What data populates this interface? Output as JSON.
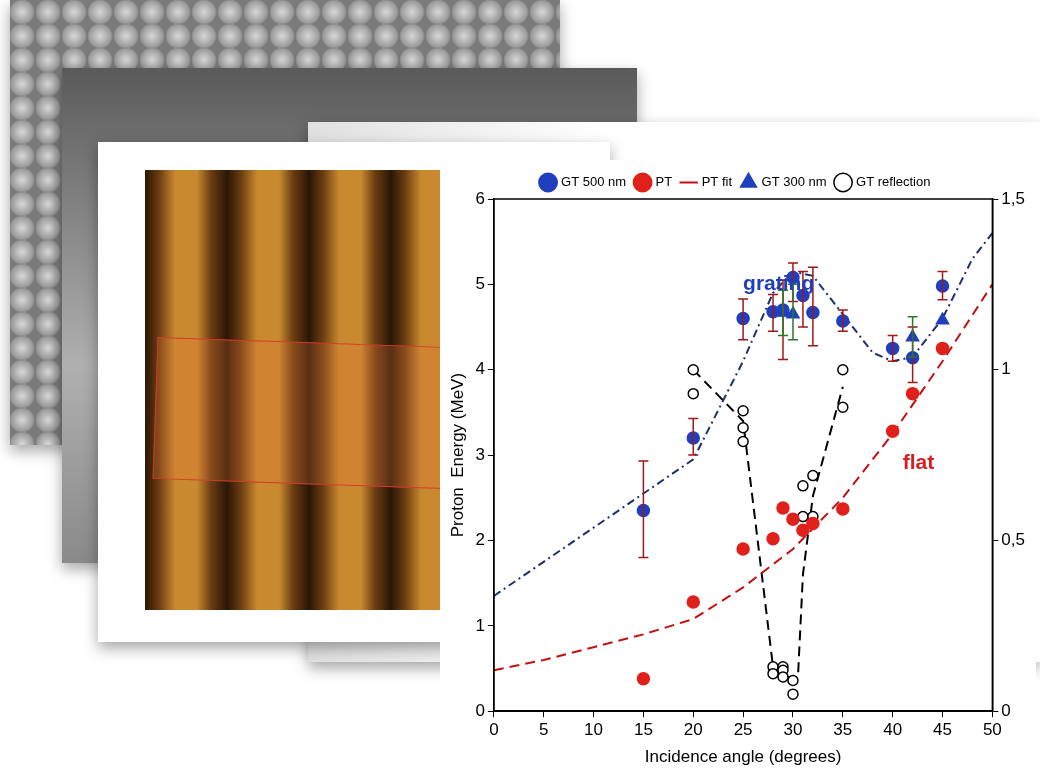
{
  "chart_data": {
    "type": "scatter",
    "xlabel": "Incidence angle (degrees)",
    "ylabel": "Proton  Energy (MeV)",
    "xlim": [
      0,
      50
    ],
    "xticks": [
      0,
      5,
      10,
      15,
      20,
      25,
      30,
      35,
      40,
      45,
      50
    ],
    "ylim": [
      0,
      6
    ],
    "yticks": [
      0,
      1,
      2,
      3,
      4,
      5,
      6
    ],
    "y2lim": [
      0,
      1.5
    ],
    "y2ticks": [
      0,
      {
        "value": 0.5,
        "label": "0,5"
      },
      1,
      {
        "value": 1.5,
        "label": "1,5"
      }
    ],
    "grid": false,
    "legend": "top",
    "annotations": [
      {
        "text": "grating",
        "x": 25,
        "y": 5.0,
        "color": "#1f3fbf"
      },
      {
        "text": "flat",
        "x": 41,
        "y": 2.9,
        "color": "#d42020"
      }
    ],
    "series": [
      {
        "name": "GT 500 nm",
        "type": "scatter",
        "marker": "circle",
        "color": "#1f3fbf",
        "x": [
          15,
          20,
          25,
          28,
          29,
          30,
          31,
          32,
          35,
          40,
          42,
          45
        ],
        "values": [
          2.35,
          3.2,
          4.6,
          4.68,
          4.7,
          5.08,
          4.87,
          4.67,
          4.57,
          4.25,
          4.14,
          4.98
        ],
        "error_bars": [
          [
            1.8,
            2.93
          ],
          [
            3.0,
            3.43
          ],
          [
            4.35,
            4.83
          ],
          [
            4.45,
            4.88
          ],
          [
            4.12,
            5.05
          ],
          [
            4.8,
            5.25
          ],
          [
            4.5,
            5.15
          ],
          [
            4.28,
            5.2
          ],
          [
            4.45,
            4.7
          ],
          [
            4.1,
            4.4
          ],
          [
            3.85,
            4.5
          ],
          [
            4.82,
            5.15
          ]
        ]
      },
      {
        "name": "PT",
        "type": "scatter",
        "marker": "circle",
        "color": "#e0201a",
        "x": [
          15,
          20,
          25,
          28,
          29,
          30,
          31,
          32,
          35,
          40,
          42,
          45
        ],
        "values": [
          0.38,
          1.28,
          1.9,
          2.02,
          2.38,
          2.25,
          2.12,
          2.2,
          2.37,
          3.28,
          3.72,
          4.25
        ]
      },
      {
        "name": "PT fit",
        "type": "line",
        "line_style": "dashed",
        "color": "#c41010",
        "x": [
          0,
          5,
          10,
          15,
          20,
          25,
          30,
          35,
          40,
          45,
          50
        ],
        "values": [
          0.48,
          0.6,
          0.75,
          0.9,
          1.08,
          1.45,
          1.9,
          2.5,
          3.25,
          4.1,
          5.0
        ]
      },
      {
        "name": "GT 300 nm",
        "type": "scatter",
        "marker": "triangle",
        "color": "#1f3fbf",
        "x": [
          29,
          30,
          42,
          45
        ],
        "values": [
          4.67,
          4.65,
          4.38,
          4.58
        ],
        "error_bars": [
          [
            4.4,
            4.93
          ],
          [
            4.35,
            5.0
          ],
          [
            4.15,
            4.62
          ],
          null
        ]
      },
      {
        "type": "line",
        "line_style": "dashdot",
        "color": "#1f2f6f",
        "x": [
          0,
          5,
          10,
          15,
          20,
          25,
          28,
          30,
          32,
          35,
          38,
          40,
          42,
          45,
          48,
          50
        ],
        "values": [
          1.35,
          1.75,
          2.15,
          2.55,
          2.95,
          4.1,
          4.9,
          5.15,
          5.1,
          4.65,
          4.2,
          4.1,
          4.15,
          4.6,
          5.3,
          5.6
        ]
      },
      {
        "name": "GT reflection",
        "type": "scatter",
        "marker": "circle_open",
        "color": "#000000",
        "axis": "y2",
        "x": [
          20,
          20,
          25,
          25,
          25,
          28,
          28,
          29,
          29,
          29,
          30,
          30,
          31,
          31,
          32,
          32,
          35,
          35
        ],
        "values": [
          1.0,
          0.93,
          0.88,
          0.83,
          0.79,
          0.13,
          0.11,
          0.13,
          0.12,
          0.1,
          0.09,
          0.05,
          0.66,
          0.57,
          0.69,
          0.57,
          1.0,
          0.89
        ]
      },
      {
        "type": "line",
        "line_style": "dashed",
        "color": "#000000",
        "axis": "y2",
        "x": [
          20,
          21,
          25,
          28,
          29.5,
          30.5,
          31,
          32,
          35
        ],
        "values": [
          1.0,
          0.97,
          0.85,
          0.13,
          0.1,
          0.1,
          0.4,
          0.63,
          0.95
        ]
      }
    ]
  }
}
